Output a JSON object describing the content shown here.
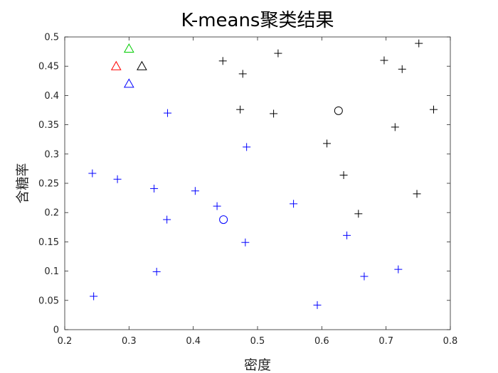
{
  "chart_data": {
    "type": "scatter",
    "title": "K-means聚类结果",
    "xlabel": "密度",
    "ylabel": "含糖率",
    "xlim": [
      0.2,
      0.8
    ],
    "ylim": [
      0,
      0.5
    ],
    "xticks": [
      "0.2",
      "0.3",
      "0.4",
      "0.5",
      "0.6",
      "0.7",
      "0.8"
    ],
    "yticks": [
      "0",
      "0.05",
      "0.1",
      "0.15",
      "0.2",
      "0.25",
      "0.3",
      "0.35",
      "0.4",
      "0.45",
      "0.5"
    ],
    "grid": false,
    "colors": {
      "cluster_black": "#000000",
      "cluster_blue": "#0000ff",
      "red": "#ff0000",
      "green": "#00cc00"
    },
    "series": [
      {
        "marker": "plus",
        "color": "#000000",
        "points": [
          [
            0.446,
            0.459
          ],
          [
            0.477,
            0.437
          ],
          [
            0.532,
            0.472
          ],
          [
            0.697,
            0.46
          ],
          [
            0.725,
            0.445
          ],
          [
            0.751,
            0.489
          ],
          [
            0.473,
            0.376
          ],
          [
            0.525,
            0.369
          ],
          [
            0.774,
            0.376
          ],
          [
            0.714,
            0.346
          ],
          [
            0.608,
            0.318
          ],
          [
            0.634,
            0.264
          ],
          [
            0.748,
            0.232
          ],
          [
            0.657,
            0.198
          ]
        ]
      },
      {
        "marker": "plus",
        "color": "#0000ff",
        "points": [
          [
            0.36,
            0.37
          ],
          [
            0.483,
            0.312
          ],
          [
            0.243,
            0.267
          ],
          [
            0.282,
            0.257
          ],
          [
            0.339,
            0.241
          ],
          [
            0.403,
            0.237
          ],
          [
            0.437,
            0.211
          ],
          [
            0.556,
            0.215
          ],
          [
            0.359,
            0.188
          ],
          [
            0.481,
            0.149
          ],
          [
            0.639,
            0.161
          ],
          [
            0.343,
            0.099
          ],
          [
            0.666,
            0.091
          ],
          [
            0.719,
            0.103
          ],
          [
            0.245,
            0.057
          ],
          [
            0.593,
            0.042
          ]
        ]
      },
      {
        "marker": "circle",
        "color": "#000000",
        "points": [
          [
            0.626,
            0.374
          ]
        ]
      },
      {
        "marker": "circle",
        "color": "#0000ff",
        "points": [
          [
            0.447,
            0.188
          ]
        ]
      },
      {
        "marker": "triangle",
        "color": "#00cc00",
        "points": [
          [
            0.3,
            0.48
          ]
        ]
      },
      {
        "marker": "triangle",
        "color": "#ff0000",
        "points": [
          [
            0.28,
            0.45
          ]
        ]
      },
      {
        "marker": "triangle",
        "color": "#000000",
        "points": [
          [
            0.32,
            0.45
          ]
        ]
      },
      {
        "marker": "triangle",
        "color": "#0000ff",
        "points": [
          [
            0.3,
            0.42
          ]
        ]
      }
    ]
  }
}
